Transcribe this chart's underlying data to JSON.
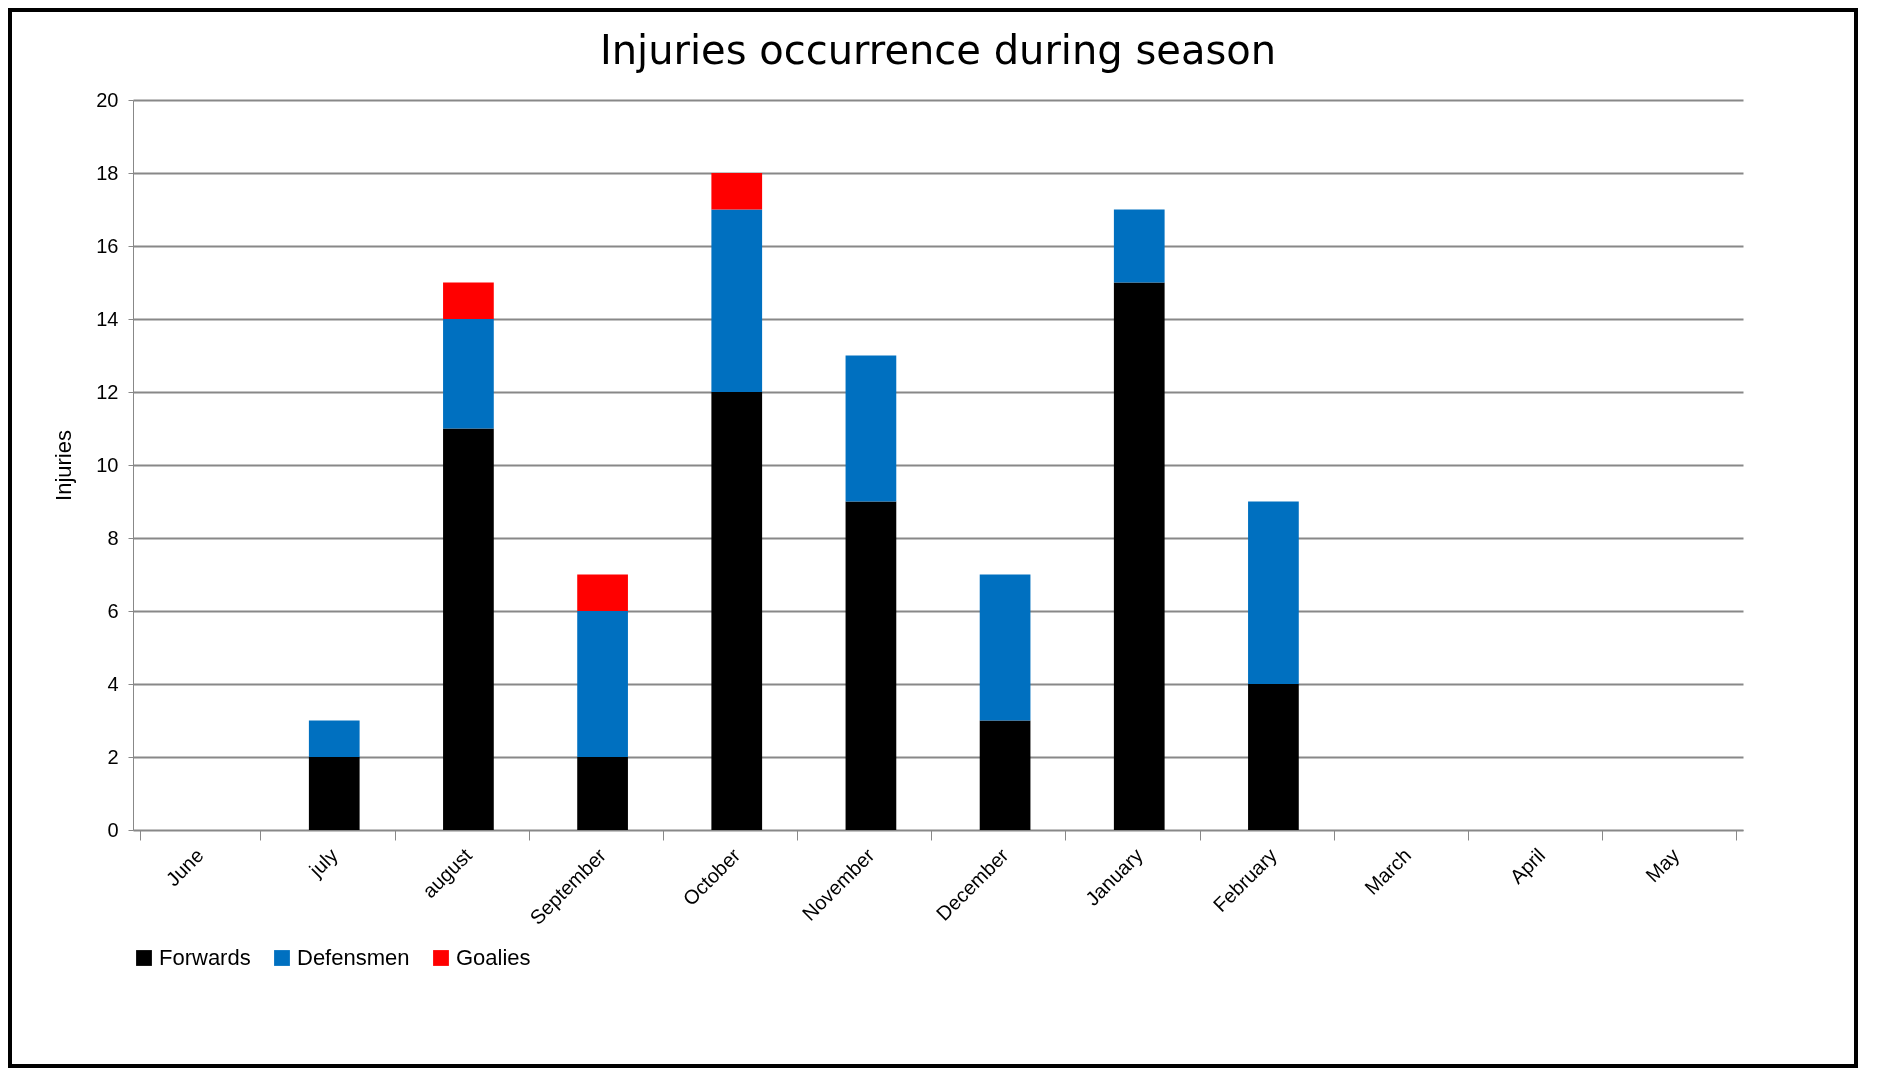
{
  "chart_data": {
    "type": "bar",
    "title": "Injuries occurrence during  season",
    "ylabel": "Injuries",
    "categories": [
      "June",
      "july",
      "august",
      "September",
      "October",
      "November",
      "December",
      "January",
      "February",
      "March",
      "April",
      "May"
    ],
    "series": [
      {
        "name": "Forwards",
        "color": "#000000",
        "values": [
          0,
          2,
          11,
          2,
          12,
          9,
          3,
          15,
          4,
          0,
          0,
          0
        ]
      },
      {
        "name": "Defensmen",
        "color": "#0070c0",
        "values": [
          0,
          1,
          3,
          4,
          5,
          4,
          4,
          2,
          5,
          0,
          0,
          0
        ]
      },
      {
        "name": "Goalies",
        "color": "#ff0000",
        "values": [
          0,
          0,
          1,
          1,
          1,
          0,
          0,
          0,
          0,
          0,
          0,
          0
        ]
      }
    ],
    "stacked": true,
    "ylim": [
      0,
      20
    ],
    "yticks": [
      0,
      2,
      4,
      6,
      8,
      10,
      12,
      14,
      16,
      18,
      20
    ],
    "grid": "y",
    "legend": "bottom"
  }
}
